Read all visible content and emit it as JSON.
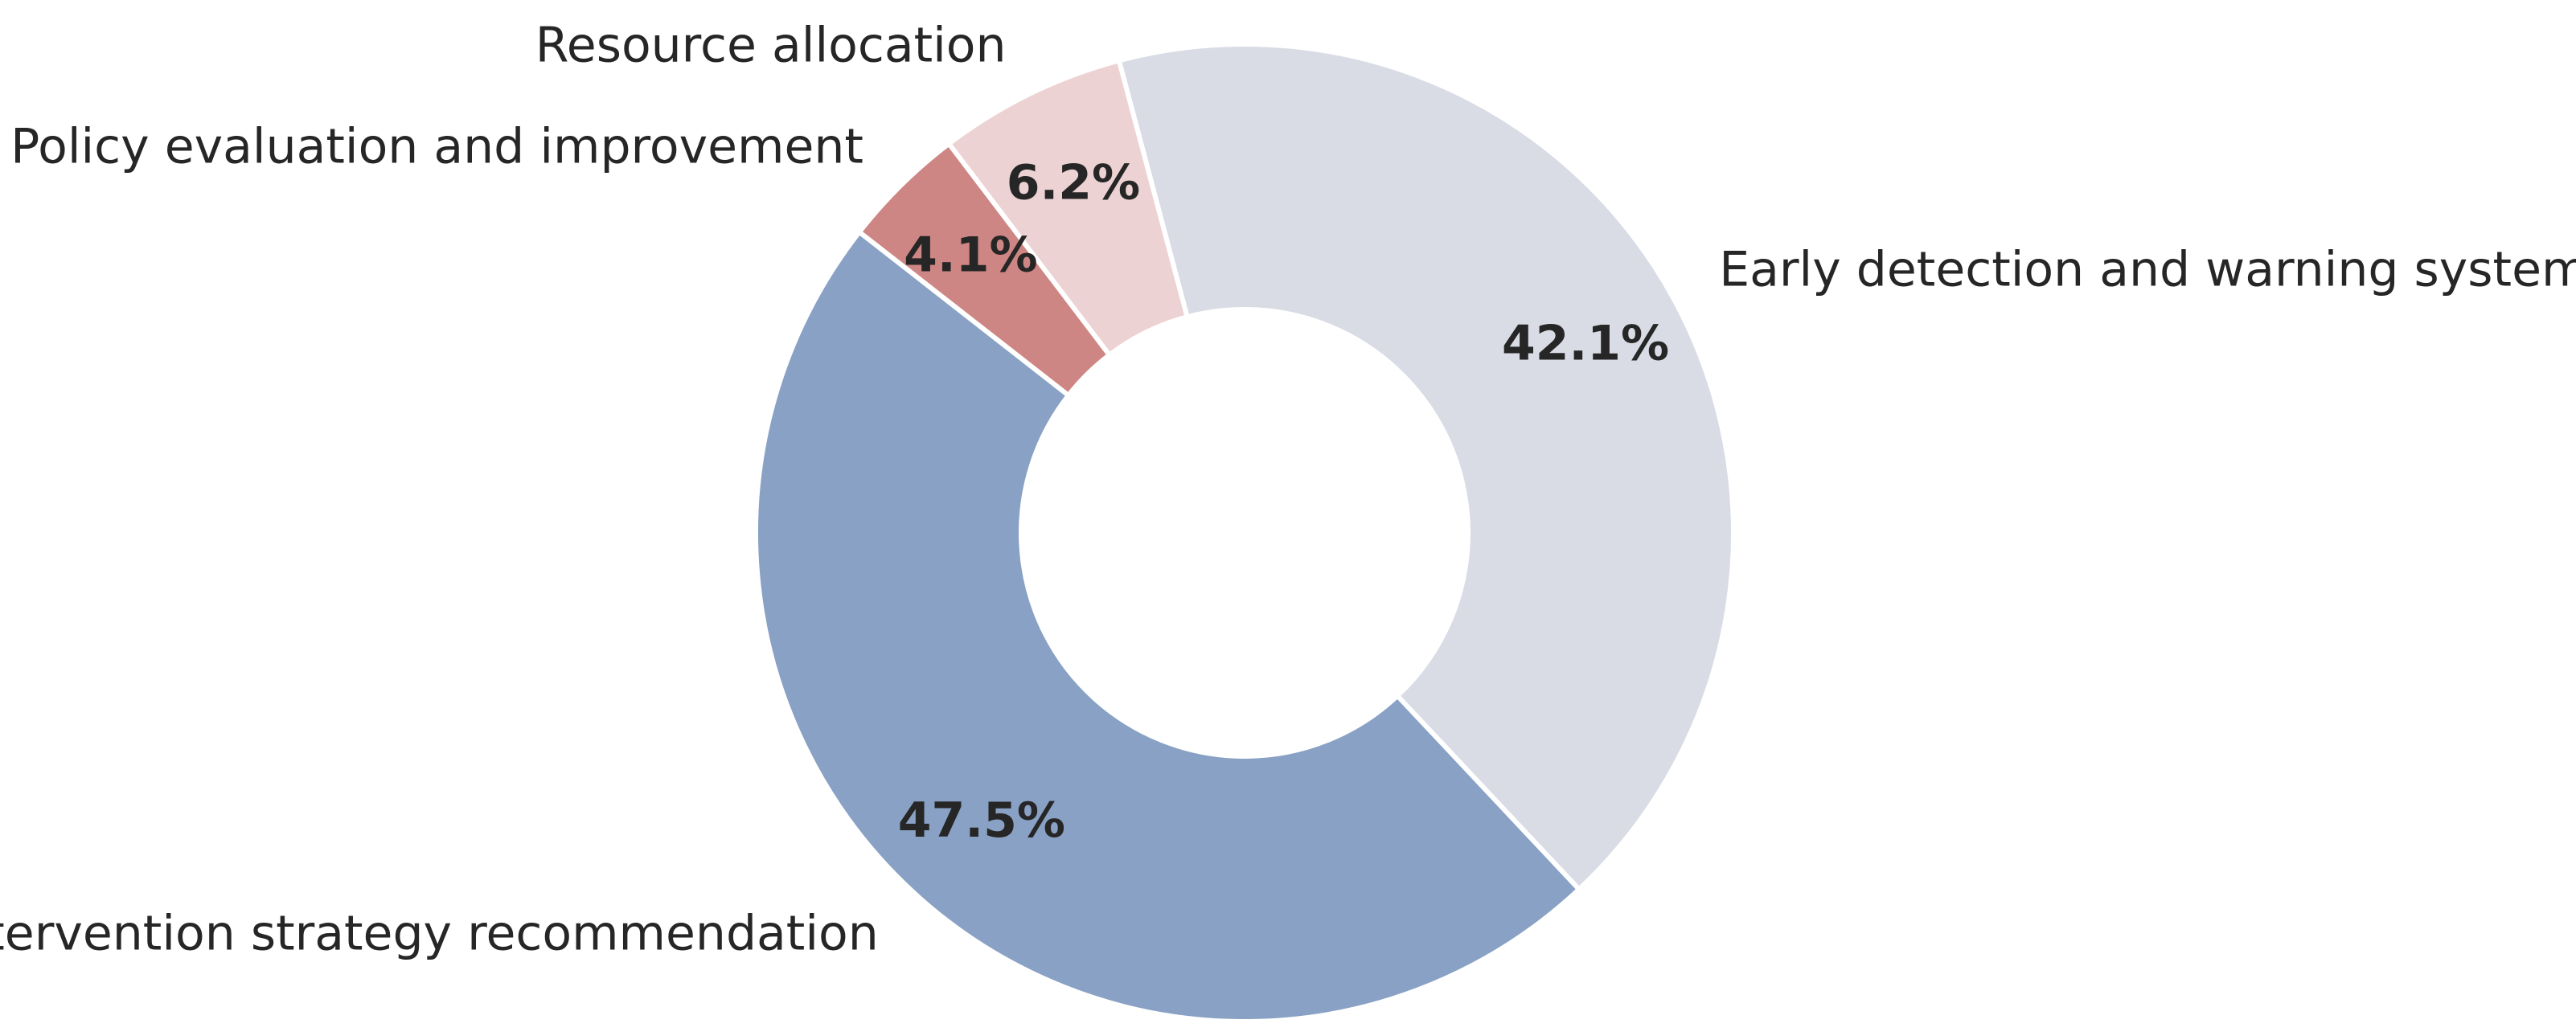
{
  "chart_data": {
    "type": "pie",
    "donut": true,
    "start_angle_deg": 142,
    "direction": "counterclockwise",
    "slices": [
      {
        "label": "Intervention strategy recommendation",
        "value": 47.5,
        "pct_label": "47.5%",
        "color": "#89a1c4"
      },
      {
        "label": "Early detection and warning systems",
        "value": 42.1,
        "pct_label": "42.1%",
        "color": "#d9dce5"
      },
      {
        "label": "Resource allocation",
        "value": 6.2,
        "pct_label": "6.2%",
        "color": "#edd2d3"
      },
      {
        "label": "Policy evaluation and improvement",
        "value": 4.1,
        "pct_label": "4.1%",
        "color": "#cd8684"
      }
    ]
  }
}
